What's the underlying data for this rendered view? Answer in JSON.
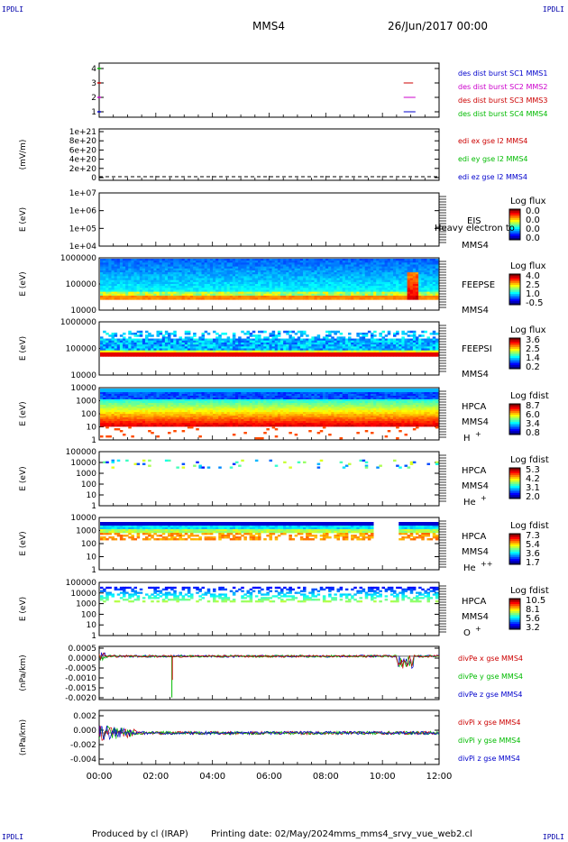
{
  "header": {
    "corner_left_top": "IPDLI",
    "corner_right_top": "IPDLI",
    "corner_left_bottom": "IPDLI",
    "corner_right_bottom": "IPDLI",
    "spacecraft": "MMS4",
    "date": "26/Jun/2017 00:00"
  },
  "footer": {
    "produced_by": "Produced by cl (IRAP)",
    "printing_date": "Printing date: 02/May/2024",
    "script": "mms_mms4_srvy_vue_web2.cl"
  },
  "chart_data": {
    "type": "stacked time-series panels",
    "x_range": [
      "00:00",
      "12:00"
    ],
    "x_ticks": [
      "00:00",
      "02:00",
      "04:00",
      "06:00",
      "08:00",
      "10:00",
      "12:00"
    ],
    "panels": [
      {
        "id": "burst",
        "type": "line",
        "ylabel": "",
        "yticks": [
          "4",
          "3",
          "2",
          "1"
        ],
        "legend": [
          {
            "text": "des dist burst SC1 MMS1",
            "color": "#0000cc"
          },
          {
            "text": "des dist burst SC2 MMS2",
            "color": "#cc00cc"
          },
          {
            "text": "des dist burst SC3 MMS3",
            "color": "#cc0000"
          },
          {
            "text": "des dist burst SC4 MMS4",
            "color": "#00bb00"
          }
        ],
        "segments": [
          {
            "sc": 3,
            "x_start": "10:45",
            "x_end": "11:05",
            "color": "#cc0000"
          },
          {
            "sc": 2,
            "x_start": "10:45",
            "x_end": "11:10",
            "color": "#cc00cc"
          },
          {
            "sc": 1,
            "x_start": "10:45",
            "x_end": "11:10",
            "color": "#0000cc"
          }
        ]
      },
      {
        "id": "edi",
        "type": "line",
        "ylabel": "(mV/m)",
        "yticks": [
          "1e+21",
          "8e+20",
          "6e+20",
          "4e+20",
          "2e+20",
          "0"
        ],
        "legend": [
          {
            "text": "edi ex gse l2 MMS4",
            "color": "#cc0000"
          },
          {
            "text": "edi ey gse l2 MMS4",
            "color": "#00bb00"
          },
          {
            "text": "edi ez gse l2 MMS4",
            "color": "#0000cc"
          }
        ],
        "values": [
          0
        ]
      },
      {
        "id": "eis",
        "type": "heatmap",
        "ylabel": "E (eV)",
        "yticks": [
          "1e+07",
          "1e+06",
          "1e+05",
          "1e+04"
        ],
        "labels": [
          "EIS",
          "MMS4"
        ],
        "overlay_text": "Heavy electron to",
        "colorbar": {
          "title": "Log flux",
          "ticks": [
            "0.0",
            "0.0",
            "0.0",
            "0.0"
          ]
        },
        "empty": true
      },
      {
        "id": "feepse",
        "type": "heatmap",
        "ylabel": "E (eV)",
        "yticks": [
          "1000000",
          "100000",
          "10000"
        ],
        "labels": [
          "FEEPSE",
          "MMS4"
        ],
        "colorbar": {
          "title": "Log flux",
          "ticks": [
            "4.0",
            "2.5",
            "1.0",
            "-0.5"
          ]
        }
      },
      {
        "id": "feepsi",
        "type": "heatmap",
        "ylabel": "E (eV)",
        "yticks": [
          "1000000",
          "100000",
          "10000"
        ],
        "labels": [
          "FEEPSI",
          "MMS4"
        ],
        "colorbar": {
          "title": "Log flux",
          "ticks": [
            "3.6",
            "2.5",
            "1.4",
            "0.2"
          ]
        }
      },
      {
        "id": "hpca_h",
        "type": "heatmap",
        "ylabel": "E (eV)",
        "yticks": [
          "10000",
          "1000",
          "100",
          "10",
          "1"
        ],
        "labels": [
          "HPCA",
          "MMS4"
        ],
        "species": "H",
        "charge": "+",
        "colorbar": {
          "title": "Log fdist",
          "ticks": [
            "8.7",
            "6.0",
            "3.4",
            "0.8"
          ]
        }
      },
      {
        "id": "hpca_he",
        "type": "heatmap",
        "ylabel": "E (eV)",
        "yticks": [
          "100000",
          "10000",
          "1000",
          "100",
          "10",
          "1"
        ],
        "labels": [
          "HPCA",
          "MMS4"
        ],
        "species": "He",
        "charge": "+",
        "colorbar": {
          "title": "Log fdist",
          "ticks": [
            "5.3",
            "4.2",
            "3.1",
            "2.0"
          ]
        }
      },
      {
        "id": "hpca_he2",
        "type": "heatmap",
        "ylabel": "E (eV)",
        "yticks": [
          "10000",
          "1000",
          "100",
          "10",
          "1"
        ],
        "labels": [
          "HPCA",
          "MMS4"
        ],
        "species": "He",
        "charge": "++",
        "colorbar": {
          "title": "Log fdist",
          "ticks": [
            "7.3",
            "5.4",
            "3.6",
            "1.7"
          ]
        }
      },
      {
        "id": "hpca_o",
        "type": "heatmap",
        "ylabel": "E (eV)",
        "yticks": [
          "100000",
          "10000",
          "1000",
          "100",
          "10",
          "1"
        ],
        "labels": [
          "HPCA",
          "MMS4"
        ],
        "species": "O",
        "charge": "+",
        "colorbar": {
          "title": "Log fdist",
          "ticks": [
            "10.5",
            "8.1",
            "5.6",
            "3.2"
          ]
        }
      },
      {
        "id": "divpe",
        "type": "line",
        "ylabel": "(nPa/km)",
        "yticks": [
          "0.0005",
          "0.0000",
          "-0.0005",
          "-0.0010",
          "-0.0015",
          "-0.0020"
        ],
        "ylim": [
          -0.0022,
          0.0005
        ],
        "legend": [
          {
            "text": "divPe x gse MMS4",
            "color": "#cc0000"
          },
          {
            "text": "divPe y gse MMS4",
            "color": "#00bb00"
          },
          {
            "text": "divPe z gse MMS4",
            "color": "#0000cc"
          }
        ]
      },
      {
        "id": "divpi",
        "type": "line",
        "ylabel": "(nPa/km)",
        "yticks": [
          "0.002",
          "0.000",
          "-0.002",
          "-0.004"
        ],
        "ylim": [
          -0.0042,
          0.003
        ],
        "legend": [
          {
            "text": "divPi x gse MMS4",
            "color": "#cc0000"
          },
          {
            "text": "divPi y gse MMS4",
            "color": "#00bb00"
          },
          {
            "text": "divPi z gse MMS4",
            "color": "#0000cc"
          }
        ]
      }
    ]
  }
}
